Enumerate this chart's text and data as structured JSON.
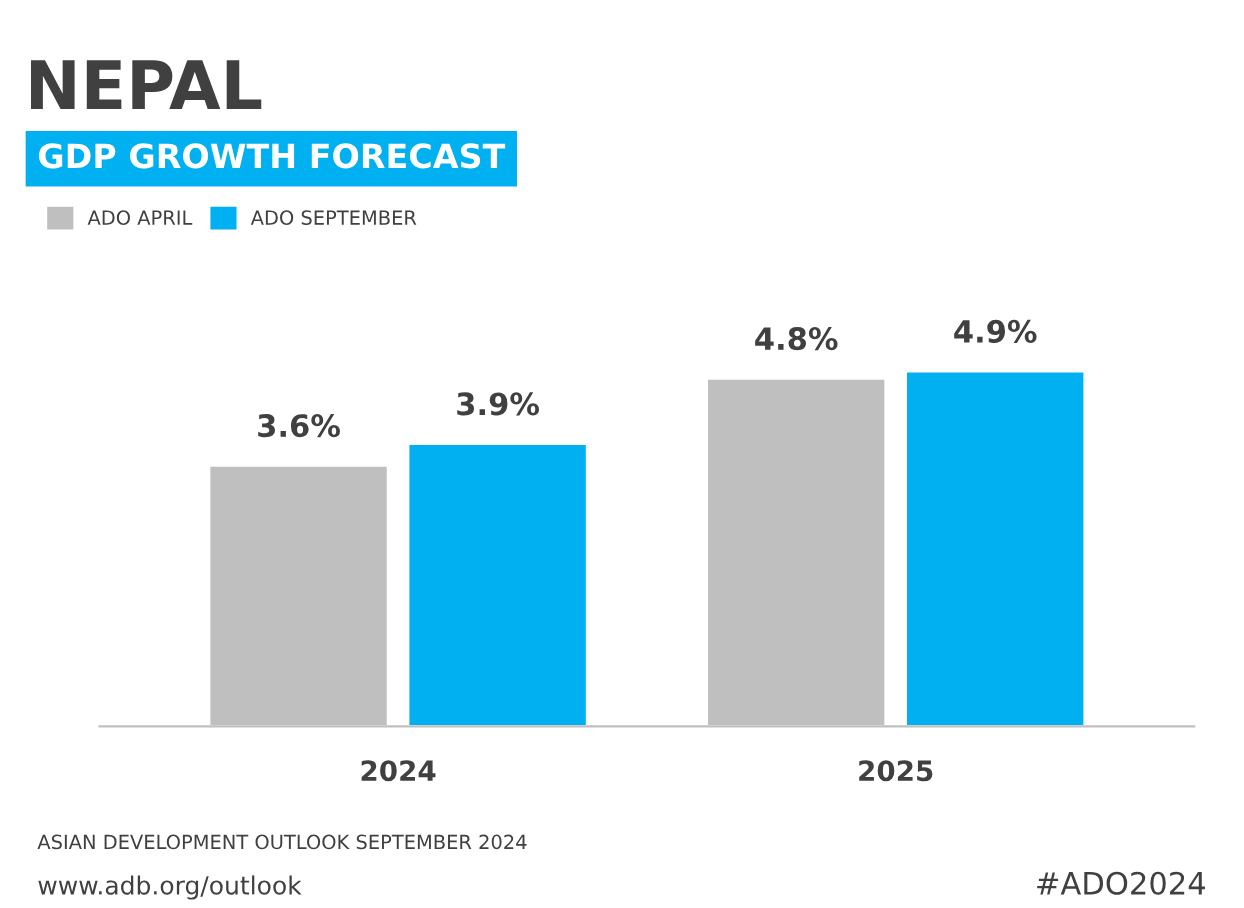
{
  "chart_data": {
    "type": "bar",
    "title": "NEPAL",
    "subtitle": "GDP GROWTH FORECAST",
    "categories": [
      "2024",
      "2025"
    ],
    "series": [
      {
        "name": "ADO APRIL",
        "color": "#bfbfbf",
        "values": [
          3.6,
          4.8
        ],
        "value_labels": [
          "3.6%",
          "4.8%"
        ]
      },
      {
        "name": "ADO SEPTEMBER",
        "color": "#00b0f0",
        "values": [
          3.9,
          4.9
        ],
        "value_labels": [
          "3.9%",
          "4.9%"
        ]
      }
    ],
    "legend": "top left",
    "grid": false,
    "annotations": [
      "ASIAN DEVELOPMENT OUTLOOK SEPTEMBER 2024",
      "www.adb.org/outlook",
      "#ADO2024"
    ]
  }
}
